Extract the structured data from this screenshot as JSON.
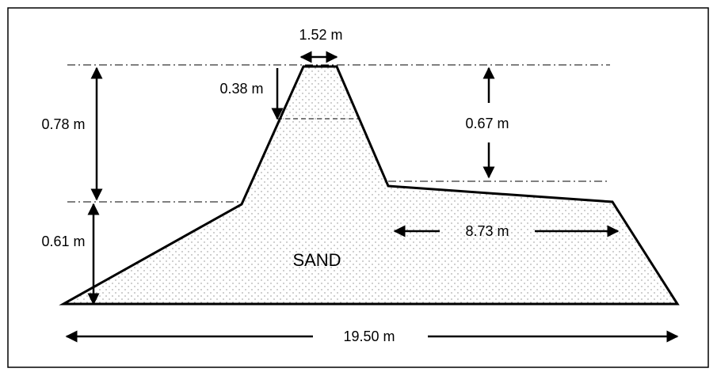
{
  "labels": {
    "top_width": "1.52 m",
    "crest_drop": "0.38 m",
    "left_upper_height": "0.78 m",
    "right_height": "0.67 m",
    "left_lower_height": "0.61 m",
    "right_berm": "8.73 m",
    "material": "SAND",
    "base_width": "19.50 m"
  }
}
